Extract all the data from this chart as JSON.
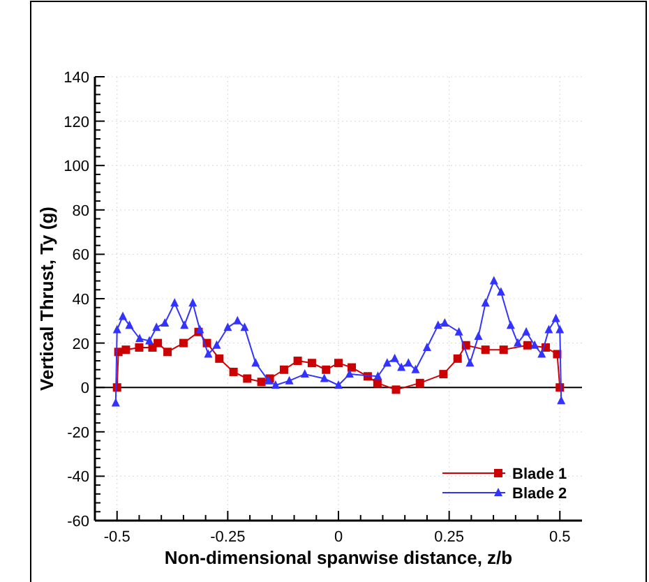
{
  "chart_data": {
    "type": "line",
    "xlabel": "Non-dimensional spanwise distance, z/b",
    "ylabel": "Vertical Thrust, Ty (g)",
    "xlim": [
      -0.55,
      0.55
    ],
    "ylim": [
      -60,
      140
    ],
    "xticks": [
      {
        "value": -0.5,
        "label": "-0.5"
      },
      {
        "value": -0.25,
        "label": "-0.25"
      },
      0,
      {
        "value": 0.25,
        "label": "0.25"
      },
      {
        "value": 0.5,
        "label": "0.5"
      }
    ],
    "yticks": [
      -60,
      -40,
      -20,
      0,
      20,
      40,
      60,
      80,
      100,
      120,
      140
    ],
    "grid": true,
    "legend": "bottom right",
    "line_style": "solid",
    "ref_lines": [
      {
        "axis": "y",
        "value": 0,
        "color": "#000000"
      }
    ],
    "series": [
      {
        "name": "Blade 1",
        "color": "#cc0000",
        "marker": "square",
        "x": [
          -0.5,
          -0.497,
          -0.48,
          -0.45,
          -0.42,
          -0.408,
          -0.386,
          -0.35,
          -0.316,
          -0.297,
          -0.269,
          -0.237,
          -0.206,
          -0.174,
          -0.155,
          -0.123,
          -0.092,
          -0.06,
          -0.028,
          0,
          0.03,
          0.066,
          0.088,
          0.13,
          0.184,
          0.237,
          0.269,
          0.288,
          0.332,
          0.373,
          0.427,
          0.468,
          0.494,
          0.5
        ],
        "values": [
          0,
          16,
          17,
          18,
          18,
          20,
          16,
          20,
          25,
          20,
          13,
          7,
          4,
          2.5,
          4,
          8,
          12,
          11,
          8,
          11,
          9,
          5,
          2,
          -1,
          2,
          6,
          13,
          19,
          17,
          17,
          19,
          18,
          15,
          0
        ]
      },
      {
        "name": "Blade 2",
        "color": "#3333ff",
        "marker": "triangle",
        "x": [
          -0.503,
          -0.5,
          -0.487,
          -0.472,
          -0.449,
          -0.427,
          -0.411,
          -0.392,
          -0.37,
          -0.348,
          -0.329,
          -0.313,
          -0.294,
          -0.275,
          -0.25,
          -0.228,
          -0.212,
          -0.187,
          -0.158,
          -0.142,
          -0.111,
          -0.076,
          -0.032,
          0,
          0.025,
          0.089,
          0.11,
          0.127,
          0.142,
          0.158,
          0.174,
          0.2,
          0.225,
          0.24,
          0.272,
          0.297,
          0.316,
          0.332,
          0.351,
          0.367,
          0.389,
          0.405,
          0.424,
          0.443,
          0.459,
          0.475,
          0.491,
          0.5,
          0.503
        ],
        "values": [
          -7,
          26,
          32,
          28,
          22,
          21,
          27,
          29,
          38,
          28,
          38,
          26,
          15,
          19,
          27,
          30,
          27,
          11,
          3,
          1,
          3,
          6,
          4,
          1,
          6,
          5,
          11,
          13,
          9,
          11,
          8,
          18,
          28,
          29,
          25,
          11,
          23,
          38,
          48,
          43,
          28,
          20,
          25,
          19,
          15,
          26,
          31,
          26,
          -6
        ]
      }
    ]
  }
}
